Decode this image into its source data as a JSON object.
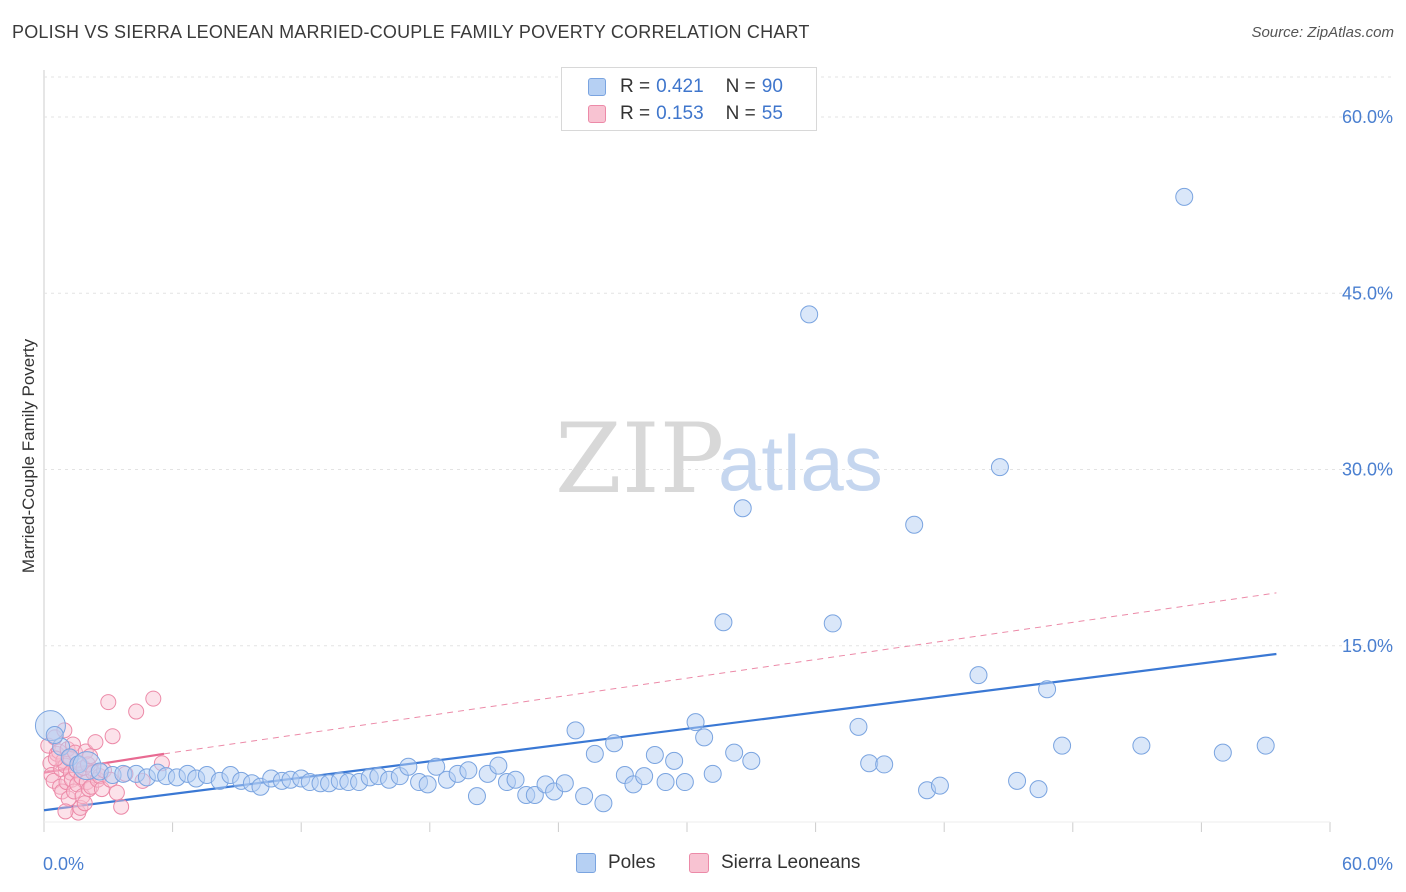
{
  "title": "POLISH VS SIERRA LEONEAN MARRIED-COUPLE FAMILY POVERTY CORRELATION CHART",
  "source": "Source: ZipAtlas.com",
  "watermark": {
    "zip": "ZIP",
    "atlas": "atlas"
  },
  "legend": {
    "r_label": "R =",
    "n_label": "N =",
    "rows": [
      {
        "name": "Poles",
        "r": "0.421",
        "n": "90",
        "color": "#7aa4e0"
      },
      {
        "name": "Sierra Leoneans",
        "r": "0.153",
        "n": "55",
        "color": "#ec8aa8"
      }
    ]
  },
  "chart_data": {
    "type": "scatter",
    "title": "POLISH VS SIERRA LEONEAN MARRIED-COUPLE FAMILY POVERTY CORRELATION CHART",
    "xlabel": "",
    "ylabel": "Married-Couple Family Poverty",
    "xlim": [
      0,
      60
    ],
    "ylim": [
      0,
      64
    ],
    "x_tick_labels": [
      "0.0%",
      "60.0%"
    ],
    "y_ticks": [
      15,
      30,
      45,
      60
    ],
    "y_tick_labels": [
      "15.0%",
      "30.0%",
      "45.0%",
      "60.0%"
    ],
    "series": [
      {
        "name": "Poles",
        "color": "#7aa4e0",
        "trendline": {
          "x": [
            0,
            57.5
          ],
          "y": [
            1.0,
            14.3
          ],
          "style": "solid"
        },
        "points": [
          [
            0.3,
            8.2
          ],
          [
            0.8,
            6.4
          ],
          [
            1.2,
            5.5
          ],
          [
            1.6,
            4.9
          ],
          [
            2.0,
            4.8
          ],
          [
            2.6,
            4.3
          ],
          [
            3.2,
            4.0
          ],
          [
            3.7,
            4.1
          ],
          [
            4.3,
            4.1
          ],
          [
            4.8,
            3.8
          ],
          [
            5.3,
            4.2
          ],
          [
            5.7,
            3.9
          ],
          [
            6.2,
            3.8
          ],
          [
            6.7,
            4.1
          ],
          [
            7.1,
            3.7
          ],
          [
            7.6,
            4.0
          ],
          [
            8.2,
            3.5
          ],
          [
            8.7,
            4.0
          ],
          [
            9.2,
            3.5
          ],
          [
            9.7,
            3.3
          ],
          [
            10.1,
            3.0
          ],
          [
            10.6,
            3.7
          ],
          [
            11.1,
            3.5
          ],
          [
            11.5,
            3.6
          ],
          [
            12.0,
            3.7
          ],
          [
            12.4,
            3.4
          ],
          [
            12.9,
            3.3
          ],
          [
            13.3,
            3.3
          ],
          [
            13.8,
            3.5
          ],
          [
            14.2,
            3.4
          ],
          [
            14.7,
            3.4
          ],
          [
            15.2,
            3.8
          ],
          [
            15.6,
            3.9
          ],
          [
            16.1,
            3.6
          ],
          [
            16.6,
            3.9
          ],
          [
            17.0,
            4.7
          ],
          [
            17.5,
            3.4
          ],
          [
            17.9,
            3.2
          ],
          [
            18.3,
            4.7
          ],
          [
            18.8,
            3.6
          ],
          [
            19.3,
            4.1
          ],
          [
            19.8,
            4.4
          ],
          [
            20.2,
            2.2
          ],
          [
            20.7,
            4.1
          ],
          [
            21.2,
            4.8
          ],
          [
            21.6,
            3.4
          ],
          [
            22.0,
            3.6
          ],
          [
            22.5,
            2.3
          ],
          [
            22.9,
            2.3
          ],
          [
            23.4,
            3.2
          ],
          [
            23.8,
            2.6
          ],
          [
            24.3,
            3.3
          ],
          [
            24.8,
            7.8
          ],
          [
            25.2,
            2.2
          ],
          [
            25.7,
            5.8
          ],
          [
            26.1,
            1.6
          ],
          [
            26.6,
            6.7
          ],
          [
            27.1,
            4.0
          ],
          [
            27.5,
            3.2
          ],
          [
            28.0,
            3.9
          ],
          [
            28.5,
            5.7
          ],
          [
            29.0,
            3.4
          ],
          [
            29.4,
            5.2
          ],
          [
            29.9,
            3.4
          ],
          [
            30.4,
            8.5
          ],
          [
            30.8,
            7.2
          ],
          [
            31.2,
            4.1
          ],
          [
            31.7,
            17.0
          ],
          [
            32.2,
            5.9
          ],
          [
            32.6,
            26.7
          ],
          [
            33.0,
            5.2
          ],
          [
            35.7,
            43.2
          ],
          [
            36.8,
            16.9
          ],
          [
            38.0,
            8.1
          ],
          [
            38.5,
            5.0
          ],
          [
            39.2,
            4.9
          ],
          [
            40.6,
            25.3
          ],
          [
            41.2,
            2.7
          ],
          [
            41.8,
            3.1
          ],
          [
            43.6,
            12.5
          ],
          [
            44.6,
            30.2
          ],
          [
            45.4,
            3.5
          ],
          [
            46.4,
            2.8
          ],
          [
            46.8,
            11.3
          ],
          [
            47.5,
            6.5
          ],
          [
            51.2,
            6.5
          ],
          [
            53.2,
            53.2
          ],
          [
            55.0,
            5.9
          ],
          [
            57.0,
            6.5
          ],
          [
            0.5,
            7.4
          ]
        ]
      },
      {
        "name": "Sierra Leoneans",
        "color": "#ec8aa8",
        "trendline": {
          "x": [
            0,
            5.6
          ],
          "y": [
            4.2,
            5.8
          ],
          "style": "solid",
          "extended_x": [
            5.6,
            57.5
          ],
          "extended_y": [
            5.8,
            19.5
          ],
          "extended_style": "dashed"
        },
        "points": [
          [
            0.2,
            6.5
          ],
          [
            0.3,
            5.0
          ],
          [
            0.35,
            4.0
          ],
          [
            0.45,
            3.5
          ],
          [
            0.5,
            7.2
          ],
          [
            0.6,
            5.8
          ],
          [
            0.7,
            6.0
          ],
          [
            0.75,
            3.0
          ],
          [
            0.8,
            4.5
          ],
          [
            0.85,
            2.6
          ],
          [
            0.9,
            5.2
          ],
          [
            0.95,
            7.8
          ],
          [
            1.0,
            4.8
          ],
          [
            1.05,
            3.4
          ],
          [
            1.1,
            6.2
          ],
          [
            1.15,
            2.0
          ],
          [
            1.2,
            5.5
          ],
          [
            1.25,
            4.2
          ],
          [
            1.3,
            3.6
          ],
          [
            1.35,
            6.6
          ],
          [
            1.4,
            2.6
          ],
          [
            1.45,
            5.9
          ],
          [
            1.5,
            4.4
          ],
          [
            1.55,
            3.2
          ],
          [
            1.6,
            0.8
          ],
          [
            1.65,
            5.0
          ],
          [
            1.7,
            1.2
          ],
          [
            1.75,
            3.8
          ],
          [
            1.8,
            2.2
          ],
          [
            1.85,
            4.6
          ],
          [
            1.9,
            1.6
          ],
          [
            1.95,
            6.0
          ],
          [
            2.0,
            3.4
          ],
          [
            2.05,
            4.9
          ],
          [
            2.1,
            2.8
          ],
          [
            2.15,
            5.6
          ],
          [
            2.2,
            3.0
          ],
          [
            2.3,
            4.2
          ],
          [
            2.4,
            6.8
          ],
          [
            2.5,
            3.6
          ],
          [
            2.6,
            3.9
          ],
          [
            2.7,
            2.8
          ],
          [
            2.8,
            4.4
          ],
          [
            3.0,
            10.2
          ],
          [
            3.1,
            3.6
          ],
          [
            3.2,
            7.3
          ],
          [
            3.4,
            2.5
          ],
          [
            3.6,
            1.3
          ],
          [
            3.8,
            4.1
          ],
          [
            4.3,
            9.4
          ],
          [
            4.6,
            3.5
          ],
          [
            5.1,
            10.5
          ],
          [
            5.5,
            5.0
          ],
          [
            0.55,
            5.4
          ],
          [
            1.0,
            0.9
          ]
        ]
      }
    ]
  }
}
